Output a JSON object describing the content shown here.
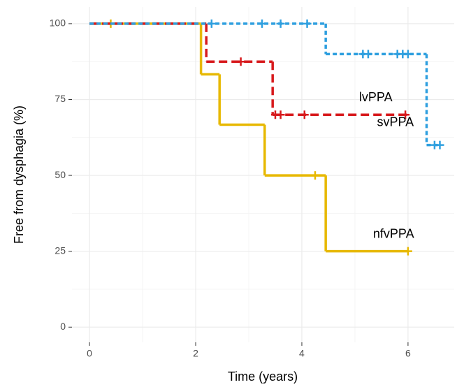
{
  "chart_data": {
    "type": "survival",
    "xlabel": "Time (years)",
    "ylabel": "Free from dysphagia (%)",
    "xlim": [
      -0.33,
      6.87
    ],
    "ylim": [
      -5,
      105.5
    ],
    "xticks": [
      0,
      2,
      4,
      6
    ],
    "yticks": [
      0,
      25,
      50,
      75,
      100
    ],
    "grid": true,
    "series": [
      {
        "name": "nfvPPA",
        "color": "#e7b800",
        "dash": "solid",
        "x": [
          0,
          2.1,
          2.45,
          3.3,
          4.45,
          6.0
        ],
        "values": [
          100,
          83.3,
          66.7,
          50,
          25,
          25
        ],
        "censor_x": [
          0.4,
          4.25,
          6.0
        ],
        "censor_values": [
          100,
          50,
          25
        ]
      },
      {
        "name": "lvPPA",
        "color": "#d7191c",
        "dash": "dashed",
        "x": [
          0,
          2.2,
          3.45,
          6.0
        ],
        "values": [
          100,
          87.5,
          70,
          70
        ],
        "censor_x": [
          2.85,
          3.5,
          3.6,
          4.05,
          5.95
        ],
        "censor_values": [
          87.5,
          70,
          70,
          70,
          70
        ]
      },
      {
        "name": "svPPA",
        "color": "#2e9fdf",
        "dash": "dotted",
        "x": [
          0,
          4.45,
          6.35,
          6.6
        ],
        "values": [
          100,
          90,
          60,
          60
        ],
        "censor_x": [
          2.3,
          3.25,
          3.6,
          4.1,
          5.15,
          5.25,
          5.8,
          5.9,
          6.0,
          6.5,
          6.6
        ],
        "censor_values": [
          100,
          100,
          100,
          100,
          90,
          90,
          90,
          90,
          90,
          60,
          60
        ]
      }
    ]
  }
}
